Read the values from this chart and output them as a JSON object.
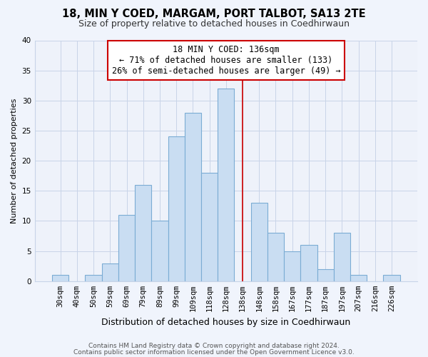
{
  "title": "18, MIN Y COED, MARGAM, PORT TALBOT, SA13 2TE",
  "subtitle": "Size of property relative to detached houses in Coedhirwaun",
  "xlabel": "Distribution of detached houses by size in Coedhirwaun",
  "ylabel": "Number of detached properties",
  "bar_labels": [
    "30sqm",
    "40sqm",
    "50sqm",
    "59sqm",
    "69sqm",
    "79sqm",
    "89sqm",
    "99sqm",
    "109sqm",
    "118sqm",
    "128sqm",
    "138sqm",
    "148sqm",
    "158sqm",
    "167sqm",
    "177sqm",
    "187sqm",
    "197sqm",
    "207sqm",
    "216sqm",
    "226sqm"
  ],
  "bar_values": [
    1,
    0,
    1,
    3,
    11,
    16,
    10,
    24,
    28,
    18,
    32,
    0,
    13,
    8,
    5,
    6,
    2,
    8,
    1,
    0,
    1
  ],
  "bar_color": "#c9ddf2",
  "bar_edge_color": "#7bacd4",
  "vline_color": "#cc0000",
  "vline_x_index": 11,
  "ylim": [
    0,
    40
  ],
  "yticks": [
    0,
    5,
    10,
    15,
    20,
    25,
    30,
    35,
    40
  ],
  "annotation_title": "18 MIN Y COED: 136sqm",
  "annotation_line1": "← 71% of detached houses are smaller (133)",
  "annotation_line2": "26% of semi-detached houses are larger (49) →",
  "annotation_box_facecolor": "#ffffff",
  "annotation_box_edgecolor": "#cc0000",
  "footnote1": "Contains HM Land Registry data © Crown copyright and database right 2024.",
  "footnote2": "Contains public sector information licensed under the Open Government Licence v3.0.",
  "background_color": "#f0f4fc",
  "plot_bg_color": "#eef2fa",
  "grid_color": "#c8d4e8",
  "title_fontsize": 10.5,
  "subtitle_fontsize": 9,
  "ylabel_fontsize": 8,
  "xlabel_fontsize": 9,
  "tick_fontsize": 7.5,
  "annotation_fontsize": 8.5,
  "footnote_fontsize": 6.5
}
